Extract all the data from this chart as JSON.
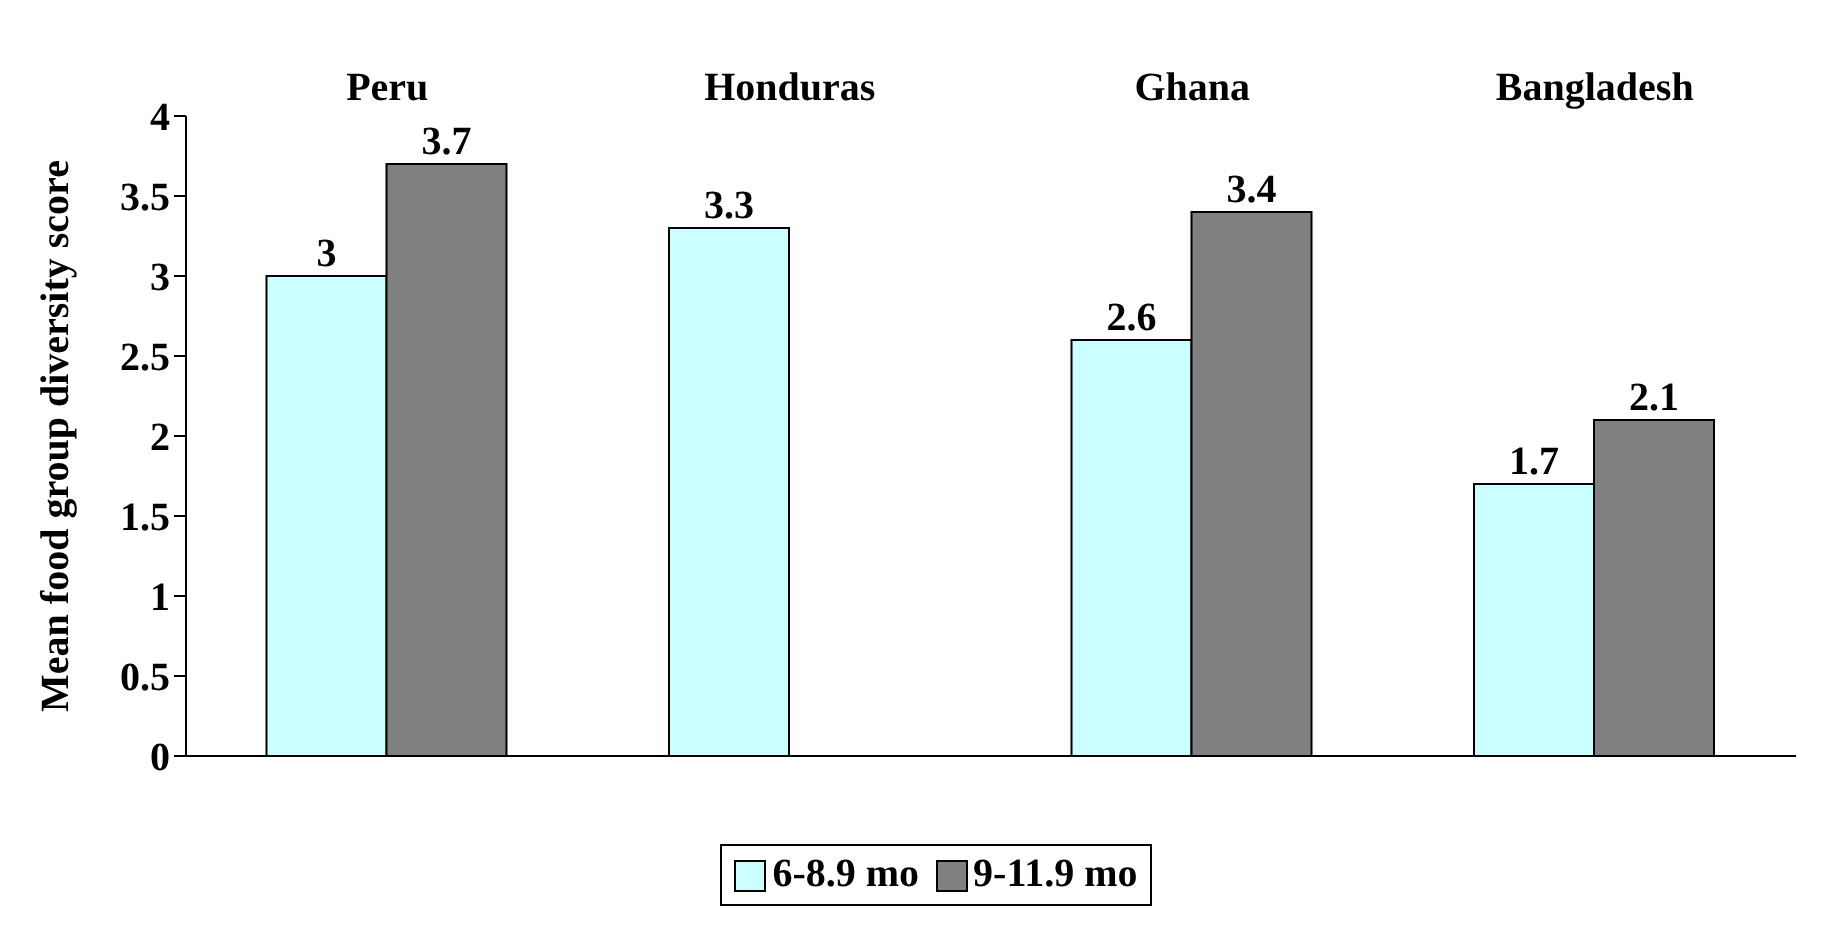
{
  "chart_data": {
    "type": "bar",
    "ylabel": "Mean food group diversity score",
    "categories": [
      "Peru",
      "Honduras",
      "Ghana",
      "Bangladesh"
    ],
    "series": [
      {
        "name": "6-8.9 mo",
        "color": "#ccffff",
        "values": [
          3,
          3.3,
          2.6,
          1.7
        ]
      },
      {
        "name": "9-11.9 mo",
        "color": "#808080",
        "values": [
          3.7,
          null,
          3.4,
          2.1
        ]
      }
    ],
    "ylim": [
      0,
      4
    ],
    "yticks": [
      0,
      0.5,
      1,
      1.5,
      2,
      2.5,
      3,
      3.5,
      4
    ],
    "data_labels": true,
    "grid": false,
    "legend": "bottom"
  }
}
